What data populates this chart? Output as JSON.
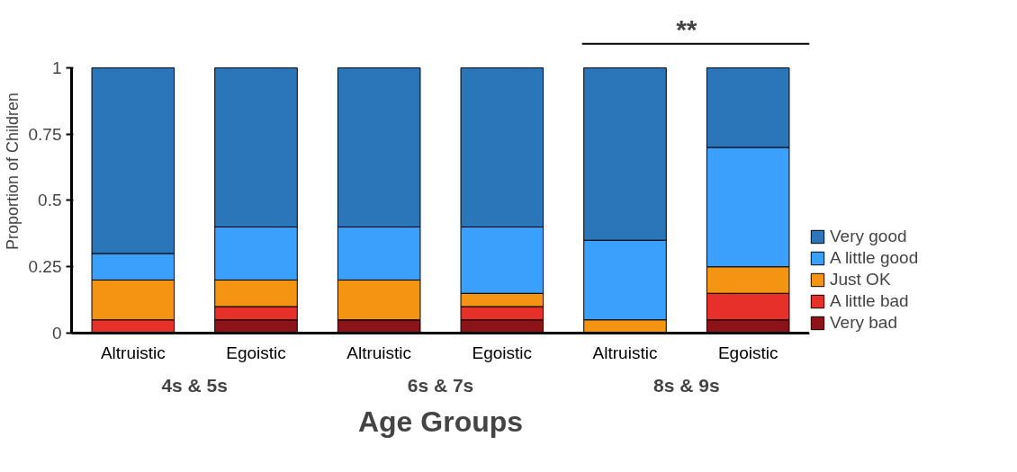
{
  "chart_data": {
    "type": "bar",
    "stacked": true,
    "categories": [
      "Altruistic",
      "Egoistic",
      "Altruistic",
      "Egoistic",
      "Altruistic",
      "Egoistic"
    ],
    "xlabel": "Age Groups",
    "ylabel": "Proportion of Children",
    "ylim": [
      0,
      1
    ],
    "yticks": [
      0,
      0.25,
      0.5,
      0.75,
      1
    ],
    "series": [
      {
        "name": "Very bad",
        "color": "#8c1418",
        "values": [
          0,
          0.05,
          0.05,
          0.05,
          0,
          0.05
        ]
      },
      {
        "name": "A little bad",
        "color": "#e8302a",
        "values": [
          0.05,
          0.05,
          0,
          0.05,
          0,
          0.1
        ]
      },
      {
        "name": "Just OK",
        "color": "#f39412",
        "values": [
          0.15,
          0.1,
          0.15,
          0.05,
          0.05,
          0.1
        ]
      },
      {
        "name": "A little good",
        "color": "#3ba0fb",
        "values": [
          0.1,
          0.2,
          0.2,
          0.25,
          0.3,
          0.45
        ]
      },
      {
        "name": "Very good",
        "color": "#2a76b8",
        "values": [
          0.7,
          0.6,
          0.6,
          0.6,
          0.65,
          0.3
        ]
      }
    ],
    "annotations": [
      "4s & 5s",
      "6s & 7s",
      "8s & 9s",
      "**"
    ],
    "grid": false,
    "legend": "right"
  }
}
